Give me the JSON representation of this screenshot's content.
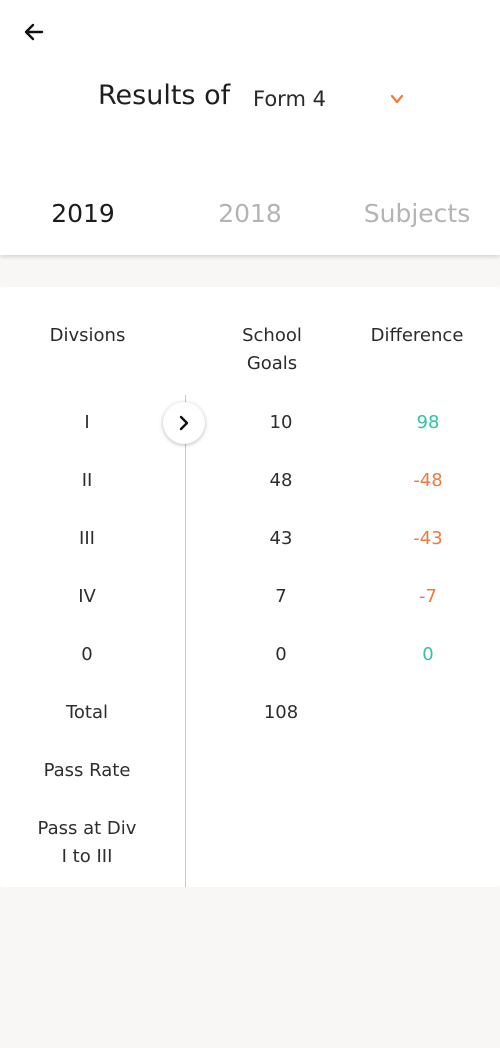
{
  "header": {
    "back_icon": "arrow-left-icon",
    "title": "Results of",
    "form_select": {
      "value": "Form 4",
      "icon": "chevron-down-icon",
      "accent_color": "#f07a3e"
    }
  },
  "tabs": [
    {
      "label": "2019",
      "active": true
    },
    {
      "label": "2018",
      "active": false
    },
    {
      "label": "Subjects",
      "active": false
    }
  ],
  "table": {
    "columns": {
      "divisions": "Divsions",
      "school_goals": "School Goals",
      "difference": "Difference"
    },
    "expand_icon": "chevron-right-icon",
    "rows": [
      {
        "division": "I",
        "school_goals": "10",
        "difference": "98"
      },
      {
        "division": "II",
        "school_goals": "48",
        "difference": "-48"
      },
      {
        "division": "III",
        "school_goals": "43",
        "difference": "-43"
      },
      {
        "division": "IV",
        "school_goals": "7",
        "difference": "-7"
      },
      {
        "division": "0",
        "school_goals": "0",
        "difference": "0"
      },
      {
        "division": "Total",
        "school_goals": "108",
        "difference": ""
      },
      {
        "division": "Pass Rate",
        "school_goals": "",
        "difference": ""
      },
      {
        "division": "Pass at Div I to III",
        "school_goals": "",
        "difference": ""
      }
    ],
    "colors": {
      "positive": "#2ec4a4",
      "negative": "#f07a3e"
    }
  }
}
